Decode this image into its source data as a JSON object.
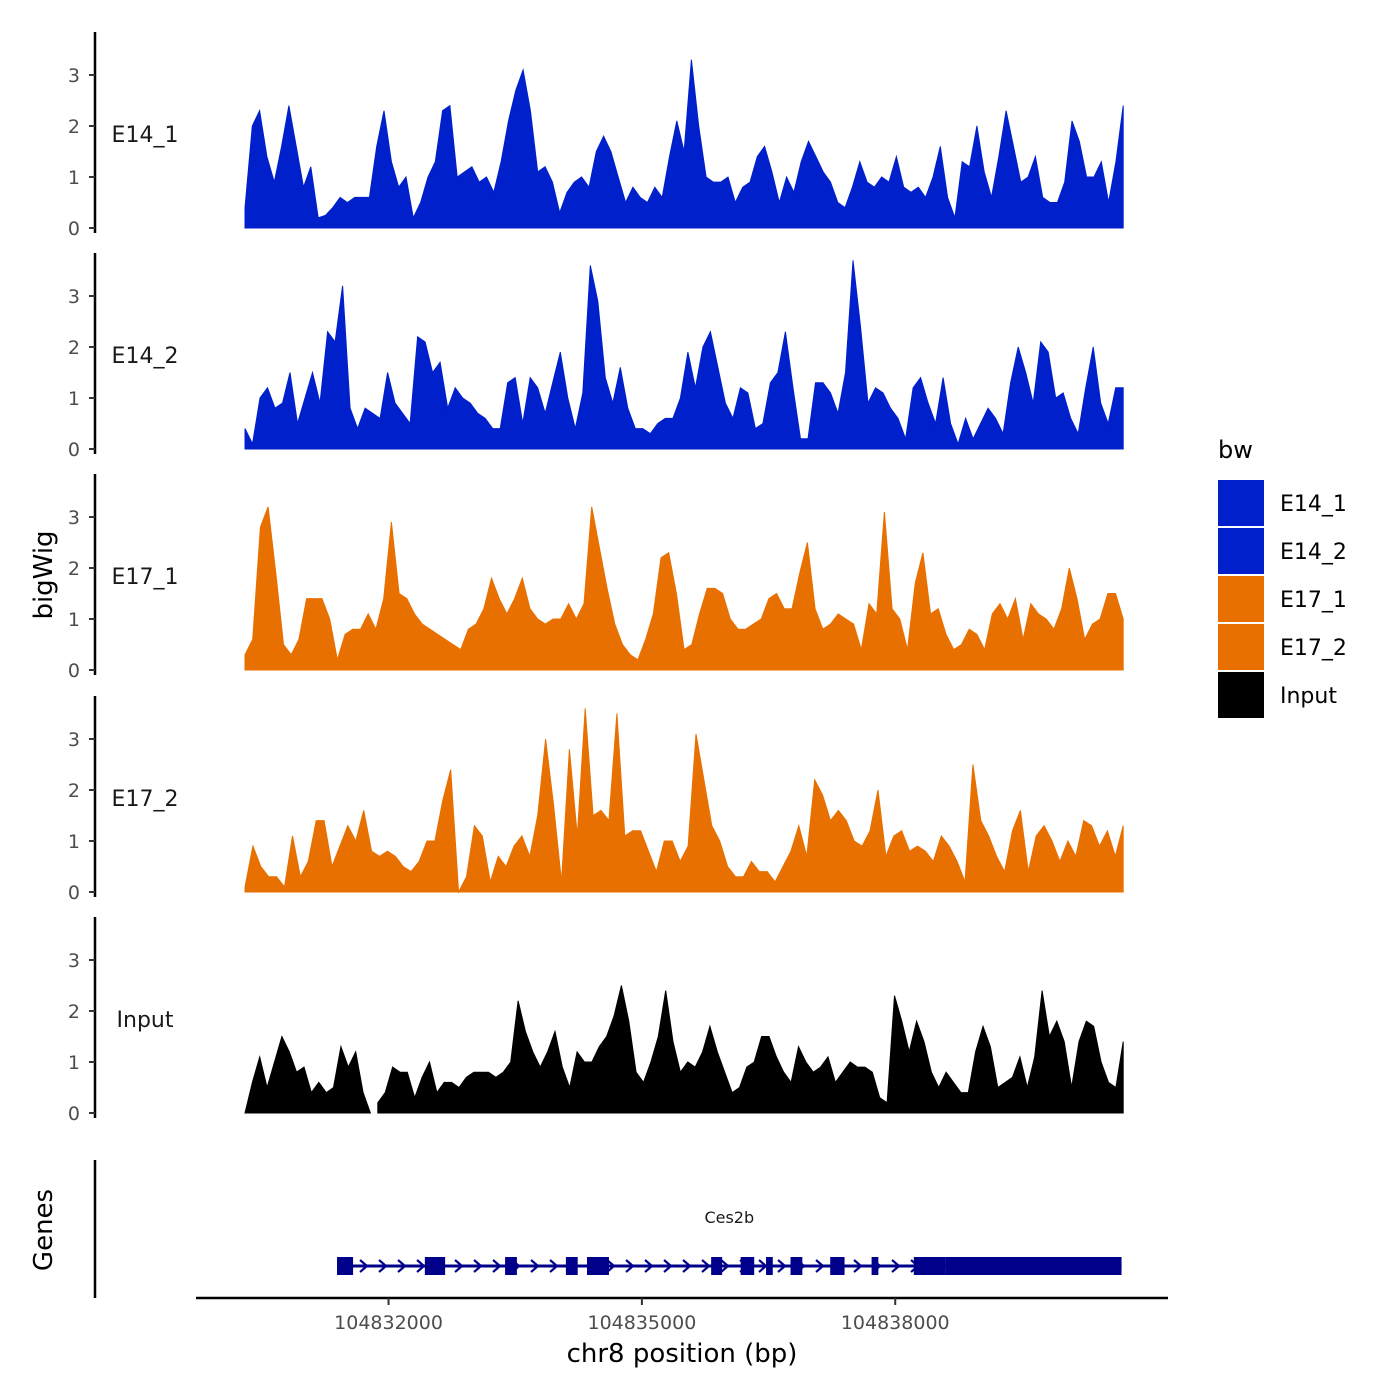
{
  "chart_data": {
    "type": "area",
    "ylabel": "bigWig",
    "xlabel": "chr8 position (bp)",
    "ylim": [
      0,
      3.8
    ],
    "yticks": [
      "0",
      "1",
      "2",
      "3"
    ],
    "xlim": [
      104829720,
      104841230
    ],
    "xticks": [
      {
        "value": 104832000,
        "label": "104832000"
      },
      {
        "value": 104835000,
        "label": "104835000"
      },
      {
        "value": 104838000,
        "label": "104838000"
      }
    ],
    "x_start": 104830300,
    "x_end": 104840700,
    "series": [
      {
        "name": "E14_1",
        "color": "#0020CC",
        "values": [
          0.4,
          2.0,
          2.3,
          1.4,
          0.9,
          1.6,
          2.4,
          1.6,
          0.8,
          1.2,
          0.2,
          0.25,
          0.4,
          0.6,
          0.5,
          0.6,
          0.6,
          0.6,
          1.6,
          2.3,
          1.3,
          0.8,
          1.0,
          0.2,
          0.5,
          1.0,
          1.3,
          2.3,
          2.4,
          1.0,
          1.1,
          1.2,
          0.9,
          1.0,
          0.7,
          1.3,
          2.1,
          2.7,
          3.1,
          2.3,
          1.1,
          1.2,
          0.9,
          0.3,
          0.7,
          0.9,
          1.0,
          0.8,
          1.5,
          1.8,
          1.5,
          1.0,
          0.5,
          0.8,
          0.6,
          0.5,
          0.8,
          0.6,
          1.4,
          2.1,
          1.5,
          3.3,
          2.0,
          1.0,
          0.9,
          0.9,
          1.0,
          0.5,
          0.8,
          0.9,
          1.4,
          1.6,
          1.1,
          0.5,
          1.0,
          0.7,
          1.3,
          1.7,
          1.4,
          1.1,
          0.9,
          0.5,
          0.4,
          0.8,
          1.3,
          0.9,
          0.8,
          1.0,
          0.9,
          1.4,
          0.8,
          0.7,
          0.8,
          0.6,
          1.0,
          1.6,
          0.6,
          0.2,
          1.3,
          1.2,
          2.0,
          1.1,
          0.6,
          1.4,
          2.3,
          1.6,
          0.9,
          1.0,
          1.4,
          0.6,
          0.5,
          0.5,
          0.9,
          2.1,
          1.7,
          1.0,
          1.0,
          1.3,
          0.5,
          1.3,
          2.4
        ],
        "label": "E14_1",
        "gap_after": []
      },
      {
        "name": "E14_2",
        "color": "#0020CC",
        "values": [
          0.4,
          0.1,
          1.0,
          1.2,
          0.8,
          0.9,
          1.5,
          0.5,
          1.0,
          1.5,
          0.9,
          2.3,
          2.1,
          3.2,
          0.8,
          0.4,
          0.8,
          0.7,
          0.6,
          1.5,
          0.9,
          0.7,
          0.5,
          2.2,
          2.1,
          1.5,
          1.7,
          0.8,
          1.2,
          1.0,
          0.9,
          0.7,
          0.6,
          0.4,
          0.4,
          1.3,
          1.4,
          0.5,
          1.4,
          1.2,
          0.7,
          1.3,
          1.9,
          1.0,
          0.4,
          1.1,
          3.6,
          2.9,
          1.4,
          0.9,
          1.6,
          0.8,
          0.4,
          0.4,
          0.3,
          0.5,
          0.6,
          0.6,
          1.0,
          1.9,
          1.2,
          2.0,
          2.3,
          1.6,
          0.9,
          0.6,
          1.2,
          1.1,
          0.4,
          0.5,
          1.3,
          1.5,
          2.3,
          1.2,
          0.2,
          0.2,
          1.3,
          1.3,
          1.1,
          0.7,
          1.5,
          3.7,
          2.4,
          0.9,
          1.2,
          1.1,
          0.8,
          0.6,
          0.2,
          1.2,
          1.4,
          0.9,
          0.5,
          1.4,
          0.5,
          0.1,
          0.6,
          0.2,
          0.5,
          0.8,
          0.6,
          0.3,
          1.3,
          2.0,
          1.5,
          0.9,
          2.1,
          1.9,
          1.0,
          1.1,
          0.6,
          0.3,
          1.2,
          2.0,
          0.9,
          0.5,
          1.2,
          1.2
        ],
        "label": "E14_2",
        "gap_after": []
      },
      {
        "name": "E17_1",
        "color": "#E87000",
        "values": [
          0.3,
          0.6,
          2.8,
          3.2,
          1.9,
          0.5,
          0.3,
          0.6,
          1.4,
          1.4,
          1.4,
          1.0,
          0.2,
          0.7,
          0.8,
          0.8,
          1.1,
          0.8,
          1.4,
          2.9,
          1.5,
          1.4,
          1.1,
          0.9,
          0.8,
          0.7,
          0.6,
          0.5,
          0.4,
          0.8,
          0.9,
          1.2,
          1.8,
          1.4,
          1.1,
          1.4,
          1.8,
          1.2,
          1.0,
          0.9,
          1.0,
          1.0,
          1.3,
          1.0,
          1.3,
          3.2,
          2.4,
          1.6,
          0.9,
          0.5,
          0.3,
          0.2,
          0.6,
          1.1,
          2.2,
          2.3,
          1.5,
          0.4,
          0.5,
          1.1,
          1.6,
          1.6,
          1.5,
          1.0,
          0.8,
          0.8,
          0.9,
          1.0,
          1.4,
          1.5,
          1.2,
          1.2,
          1.9,
          2.5,
          1.2,
          0.8,
          0.9,
          1.1,
          1.0,
          0.9,
          0.4,
          1.3,
          1.1,
          3.1,
          1.2,
          1.0,
          0.4,
          1.7,
          2.3,
          1.1,
          1.2,
          0.7,
          0.4,
          0.5,
          0.8,
          0.7,
          0.4,
          1.1,
          1.3,
          1.0,
          1.4,
          0.6,
          1.3,
          1.1,
          1.0,
          0.8,
          1.2,
          2.0,
          1.4,
          0.6,
          0.9,
          1.0,
          1.5,
          1.5,
          1.0
        ],
        "label": "E17_1",
        "gap_after": []
      },
      {
        "name": "E17_2",
        "color": "#E87000",
        "values": [
          0.1,
          0.9,
          0.5,
          0.3,
          0.3,
          0.1,
          1.1,
          0.3,
          0.6,
          1.4,
          1.4,
          0.5,
          0.9,
          1.3,
          1.0,
          1.6,
          0.8,
          0.7,
          0.8,
          0.7,
          0.5,
          0.4,
          0.6,
          1.0,
          1.0,
          1.8,
          2.4,
          0.0,
          0.3,
          1.3,
          1.1,
          0.2,
          0.7,
          0.5,
          0.9,
          1.1,
          0.7,
          1.5,
          3.0,
          1.7,
          0.2,
          2.8,
          1.1,
          3.6,
          1.5,
          1.6,
          1.4,
          3.5,
          1.1,
          1.2,
          1.2,
          0.8,
          0.4,
          1.0,
          1.0,
          0.6,
          0.9,
          3.1,
          2.2,
          1.3,
          1.0,
          0.5,
          0.3,
          0.3,
          0.6,
          0.4,
          0.4,
          0.2,
          0.5,
          0.8,
          1.3,
          0.7,
          2.2,
          1.9,
          1.4,
          1.6,
          1.4,
          1.0,
          0.9,
          1.2,
          2.0,
          0.7,
          1.1,
          1.2,
          0.8,
          0.9,
          0.8,
          0.6,
          1.1,
          0.9,
          0.6,
          0.2,
          2.5,
          1.4,
          1.1,
          0.7,
          0.4,
          1.2,
          1.6,
          0.4,
          1.1,
          1.3,
          1.0,
          0.6,
          1.0,
          0.7,
          1.4,
          1.3,
          0.9,
          1.2,
          0.7,
          1.3
        ],
        "label": "E17_2",
        "gap_after": []
      },
      {
        "name": "Input",
        "color": "#000000",
        "values": [
          0.0,
          0.6,
          1.1,
          0.5,
          1.0,
          1.5,
          1.2,
          0.8,
          0.9,
          0.4,
          0.6,
          0.4,
          0.5,
          1.3,
          0.9,
          1.2,
          0.4,
          0.0,
          0.2,
          0.4,
          0.9,
          0.8,
          0.8,
          0.3,
          0.7,
          1.0,
          0.4,
          0.6,
          0.6,
          0.5,
          0.7,
          0.8,
          0.8,
          0.8,
          0.7,
          0.8,
          1.0,
          2.2,
          1.6,
          1.2,
          0.9,
          1.2,
          1.6,
          0.9,
          0.5,
          1.2,
          1.0,
          1.0,
          1.3,
          1.5,
          1.9,
          2.5,
          1.8,
          0.8,
          0.6,
          1.0,
          1.5,
          2.4,
          1.4,
          0.8,
          1.0,
          0.9,
          1.2,
          1.7,
          1.2,
          0.8,
          0.4,
          0.5,
          0.9,
          1.0,
          1.5,
          1.5,
          1.1,
          0.8,
          0.6,
          1.3,
          1.0,
          0.8,
          0.9,
          1.1,
          0.6,
          0.8,
          1.0,
          0.9,
          0.9,
          0.8,
          0.3,
          0.2,
          2.3,
          1.8,
          1.2,
          1.8,
          1.4,
          0.8,
          0.5,
          0.8,
          0.6,
          0.4,
          0.4,
          1.2,
          1.7,
          1.3,
          0.5,
          0.6,
          0.7,
          1.1,
          0.5,
          1.1,
          2.4,
          1.5,
          1.8,
          1.4,
          0.5,
          1.4,
          1.8,
          1.7,
          1.0,
          0.6,
          0.5,
          1.4
        ],
        "label": "Input",
        "gap_after": [
          17
        ]
      }
    ],
    "genes_label": "Genes",
    "gene": {
      "name": "Ces2b",
      "start": 104831390,
      "end": 104840680,
      "strand": "+",
      "color": "#00008B",
      "exons": [
        [
          104831390,
          104831580
        ],
        [
          104832430,
          104832670
        ],
        [
          104833380,
          104833520
        ],
        [
          104834100,
          104834240
        ],
        [
          104834350,
          104834610
        ],
        [
          104835820,
          104835950
        ],
        [
          104836170,
          104836330
        ],
        [
          104836470,
          104836550
        ],
        [
          104836760,
          104836900
        ],
        [
          104837230,
          104837400
        ],
        [
          104837720,
          104837800
        ],
        [
          104838220,
          104838600
        ],
        [
          104838600,
          104840680
        ]
      ]
    },
    "legend": {
      "title": "bw",
      "position": "right",
      "entries": [
        {
          "label": "E14_1",
          "color": "#0020CC"
        },
        {
          "label": "E14_2",
          "color": "#0020CC"
        },
        {
          "label": "E17_1",
          "color": "#E87000"
        },
        {
          "label": "E17_2",
          "color": "#E87000"
        },
        {
          "label": "Input",
          "color": "#000000"
        }
      ]
    }
  }
}
